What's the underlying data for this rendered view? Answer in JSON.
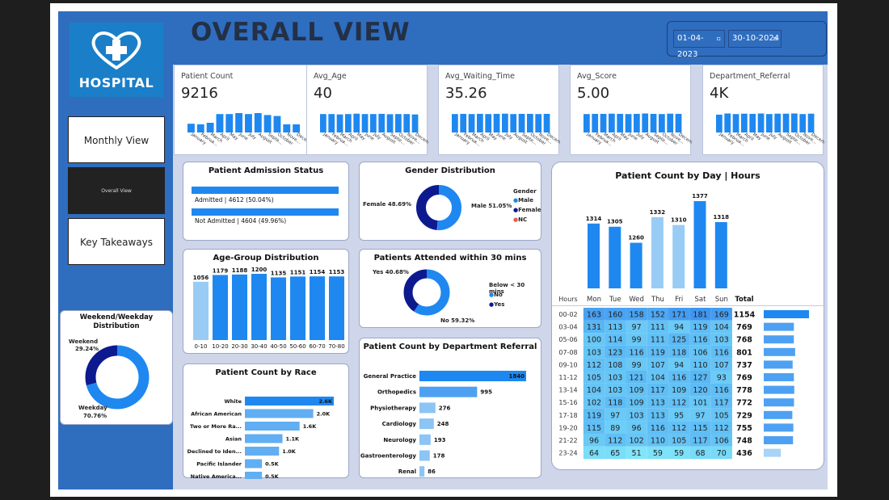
{
  "header": {
    "title": "OVERALL VIEW",
    "date_from": "01-04-2023",
    "date_to": "30-10-2024"
  },
  "logo": {
    "text": "HOSPITAL"
  },
  "nav": {
    "monthly": "Monthly View",
    "overall": "Overall View",
    "takeaways": "Key Takeaways"
  },
  "months": [
    "January",
    "Februa...",
    "March",
    "April",
    "May",
    "June",
    "July",
    "August",
    "Septe...",
    "October",
    "Nove...",
    "Decem..."
  ],
  "kpis": [
    {
      "label": "Patient Count",
      "value": "9216",
      "bars": [
        0.45,
        0.42,
        0.5,
        0.95,
        0.95,
        1,
        0.95,
        1,
        0.9,
        0.85,
        0.42,
        0.42
      ]
    },
    {
      "label": "Avg_Age",
      "value": "40",
      "bars": [
        0.95,
        0.95,
        0.93,
        0.95,
        0.97,
        0.95,
        0.95,
        0.96,
        0.94,
        0.95,
        0.95,
        0.93
      ]
    },
    {
      "label": "Avg_Waiting_Time",
      "value": "35.26",
      "bars": [
        0.95,
        0.96,
        0.95,
        0.96,
        0.95,
        0.96,
        0.97,
        0.95,
        0.96,
        0.96,
        0.95,
        0.96
      ]
    },
    {
      "label": "Avg_Score",
      "value": "5.00",
      "bars": [
        0.95,
        0.96,
        0.96,
        0.97,
        0.96,
        0.95,
        0.96,
        0.98,
        0.96,
        0.95,
        0.97,
        0.96
      ]
    },
    {
      "label": "Department_Referral",
      "value": "4K",
      "bars": [
        0.92,
        0.98,
        0.95,
        0.97,
        0.96,
        0.98,
        0.95,
        0.97,
        0.97,
        0.98,
        0.95,
        0.97
      ]
    }
  ],
  "admission": {
    "title": "Patient Admission Status",
    "admitted": "Admitted | 4612 (50.04%)",
    "not_admitted": "Not Admitted | 4604 (49.96%)"
  },
  "gender": {
    "title": "Gender Distribution",
    "legend_title": "Gender",
    "legend": [
      "Male",
      "Female",
      "NC"
    ],
    "female_label": "Female 48.69%",
    "male_label": "Male 51.05%",
    "female_pct": 48.69,
    "male_pct": 51.05,
    "nc_pct": 0.26
  },
  "age": {
    "title": "Age-Group Distribution",
    "categories": [
      "0-10",
      "10-20",
      "20-30",
      "30-40",
      "40-50",
      "50-60",
      "60-70",
      "70-80"
    ],
    "values": [
      1056,
      1179,
      1188,
      1200,
      1135,
      1151,
      1154,
      1153
    ]
  },
  "attended": {
    "title": "Patients Attended within 30 mins",
    "legend_title": "Below < 30 mins",
    "legend": [
      "No",
      "Yes"
    ],
    "yes_label": "Yes 40.68%",
    "no_label": "No 59.32%",
    "yes_pct": 40.68,
    "no_pct": 59.32
  },
  "weekend": {
    "title1": "Weekend/Weekday",
    "title2": "Distribution",
    "weekend_label1": "Weekend",
    "weekend_label2": "29.24%",
    "weekday_label1": "Weekday",
    "weekday_label2": "70.76%",
    "weekend_pct": 29.24,
    "weekday_pct": 70.76
  },
  "race": {
    "title": "Patient Count by Race",
    "categories": [
      "White",
      "African American",
      "Two or More Ra...",
      "Asian",
      "Declined to Iden...",
      "Pacific Islander",
      "Native America..."
    ],
    "labels": [
      "2.6K",
      "2.0K",
      "1.6K",
      "1.1K",
      "1.0K",
      "0.5K",
      "0.5K"
    ],
    "values": [
      2600,
      2000,
      1600,
      1100,
      1000,
      500,
      500
    ]
  },
  "dept": {
    "title": "Patient Count by Department Referral",
    "categories": [
      "General Practice",
      "Orthopedics",
      "Physiotherapy",
      "Cardiology",
      "Neurology",
      "Gastroenterology",
      "Renal"
    ],
    "values": [
      1840,
      995,
      276,
      248,
      193,
      178,
      86
    ]
  },
  "day": {
    "title": "Patient Count by Day | Hours",
    "days": [
      "Mon",
      "Tue",
      "Wed",
      "Thu",
      "Fri",
      "Sat",
      "Sun"
    ],
    "values": [
      1314,
      1305,
      1260,
      1332,
      1310,
      1377,
      1318
    ],
    "hours_header": "Hours",
    "total_header": "Total",
    "rows": [
      {
        "h": "00-02",
        "v": [
          163,
          160,
          158,
          152,
          171,
          181,
          169
        ],
        "t": 1154
      },
      {
        "h": "03-04",
        "v": [
          131,
          113,
          97,
          111,
          94,
          119,
          104
        ],
        "t": 769
      },
      {
        "h": "05-06",
        "v": [
          100,
          114,
          99,
          111,
          125,
          116,
          103
        ],
        "t": 768
      },
      {
        "h": "07-08",
        "v": [
          103,
          123,
          116,
          119,
          118,
          106,
          116
        ],
        "t": 801
      },
      {
        "h": "09-10",
        "v": [
          112,
          108,
          99,
          107,
          94,
          110,
          107
        ],
        "t": 737
      },
      {
        "h": "11-12",
        "v": [
          105,
          103,
          121,
          104,
          116,
          127,
          93
        ],
        "t": 769
      },
      {
        "h": "13-14",
        "v": [
          104,
          103,
          109,
          117,
          109,
          120,
          116
        ],
        "t": 778
      },
      {
        "h": "15-16",
        "v": [
          102,
          118,
          109,
          113,
          112,
          101,
          117
        ],
        "t": 772
      },
      {
        "h": "17-18",
        "v": [
          119,
          97,
          103,
          113,
          95,
          97,
          105
        ],
        "t": 729
      },
      {
        "h": "19-20",
        "v": [
          115,
          89,
          96,
          116,
          112,
          115,
          112
        ],
        "t": 755
      },
      {
        "h": "21-22",
        "v": [
          96,
          112,
          102,
          110,
          105,
          117,
          106
        ],
        "t": 748
      },
      {
        "h": "23-24",
        "v": [
          64,
          65,
          51,
          59,
          59,
          68,
          70
        ],
        "t": 436
      }
    ]
  },
  "colors": {
    "blue": "#1e88f0",
    "light": "#99ccf5",
    "navy": "#0d1a8f",
    "orange": "#e0604a",
    "band": "#2f6dbf"
  }
}
